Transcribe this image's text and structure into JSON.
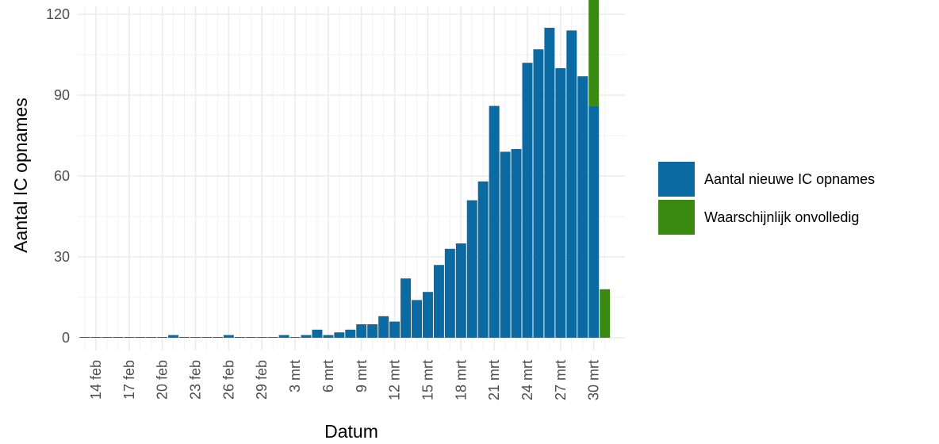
{
  "chart_data": {
    "type": "bar",
    "title": "",
    "xlabel": "Datum",
    "ylabel": "Aantal IC opnames",
    "ylim": [
      0,
      120
    ],
    "yticks": [
      0,
      30,
      60,
      90,
      120
    ],
    "x_tick_labels": [
      "14 feb",
      "17 feb",
      "20 feb",
      "23 feb",
      "26 feb",
      "29 feb",
      "3 mrt",
      "6 mrt",
      "9 mrt",
      "12 mrt",
      "15 mrt",
      "18 mrt",
      "21 mrt",
      "24 mrt",
      "27 mrt",
      "30 mrt"
    ],
    "grid": true,
    "legend_position": "right",
    "categories": [
      "13 feb",
      "14 feb",
      "15 feb",
      "16 feb",
      "17 feb",
      "18 feb",
      "19 feb",
      "20 feb",
      "21 feb",
      "22 feb",
      "23 feb",
      "24 feb",
      "25 feb",
      "26 feb",
      "27 feb",
      "28 feb",
      "29 feb",
      "1 mrt",
      "2 mrt",
      "3 mrt",
      "4 mrt",
      "5 mrt",
      "6 mrt",
      "7 mrt",
      "8 mrt",
      "9 mrt",
      "10 mrt",
      "11 mrt",
      "12 mrt",
      "13 mrt",
      "14 mrt",
      "15 mrt",
      "16 mrt",
      "17 mrt",
      "18 mrt",
      "19 mrt",
      "20 mrt",
      "21 mrt",
      "22 mrt",
      "23 mrt",
      "24 mrt",
      "25 mrt",
      "26 mrt",
      "27 mrt",
      "28 mrt",
      "29 mrt",
      "30 mrt",
      "31 mrt"
    ],
    "series": [
      {
        "name": "Aantal nieuwe IC opnames",
        "color": "#0a6aa1",
        "values": [
          0,
          0,
          0,
          0,
          0,
          0,
          0,
          0,
          1,
          0,
          0,
          0,
          0,
          1,
          0,
          0,
          0,
          0,
          1,
          0,
          1,
          3,
          1,
          2,
          3,
          5,
          5,
          8,
          6,
          22,
          14,
          17,
          27,
          33,
          35,
          51,
          58,
          86,
          69,
          70,
          102,
          107,
          115,
          100,
          114,
          97,
          86,
          0
        ]
      },
      {
        "name": "Waarschijnlijk onvolledig",
        "color": "#3a8a12",
        "values": [
          0,
          0,
          0,
          0,
          0,
          0,
          0,
          0,
          0,
          0,
          0,
          0,
          0,
          0,
          0,
          0,
          0,
          0,
          0,
          0,
          0,
          0,
          0,
          0,
          0,
          0,
          0,
          0,
          0,
          0,
          0,
          0,
          0,
          0,
          0,
          0,
          0,
          0,
          0,
          0,
          0,
          0,
          0,
          0,
          0,
          0,
          95,
          18
        ]
      }
    ]
  }
}
